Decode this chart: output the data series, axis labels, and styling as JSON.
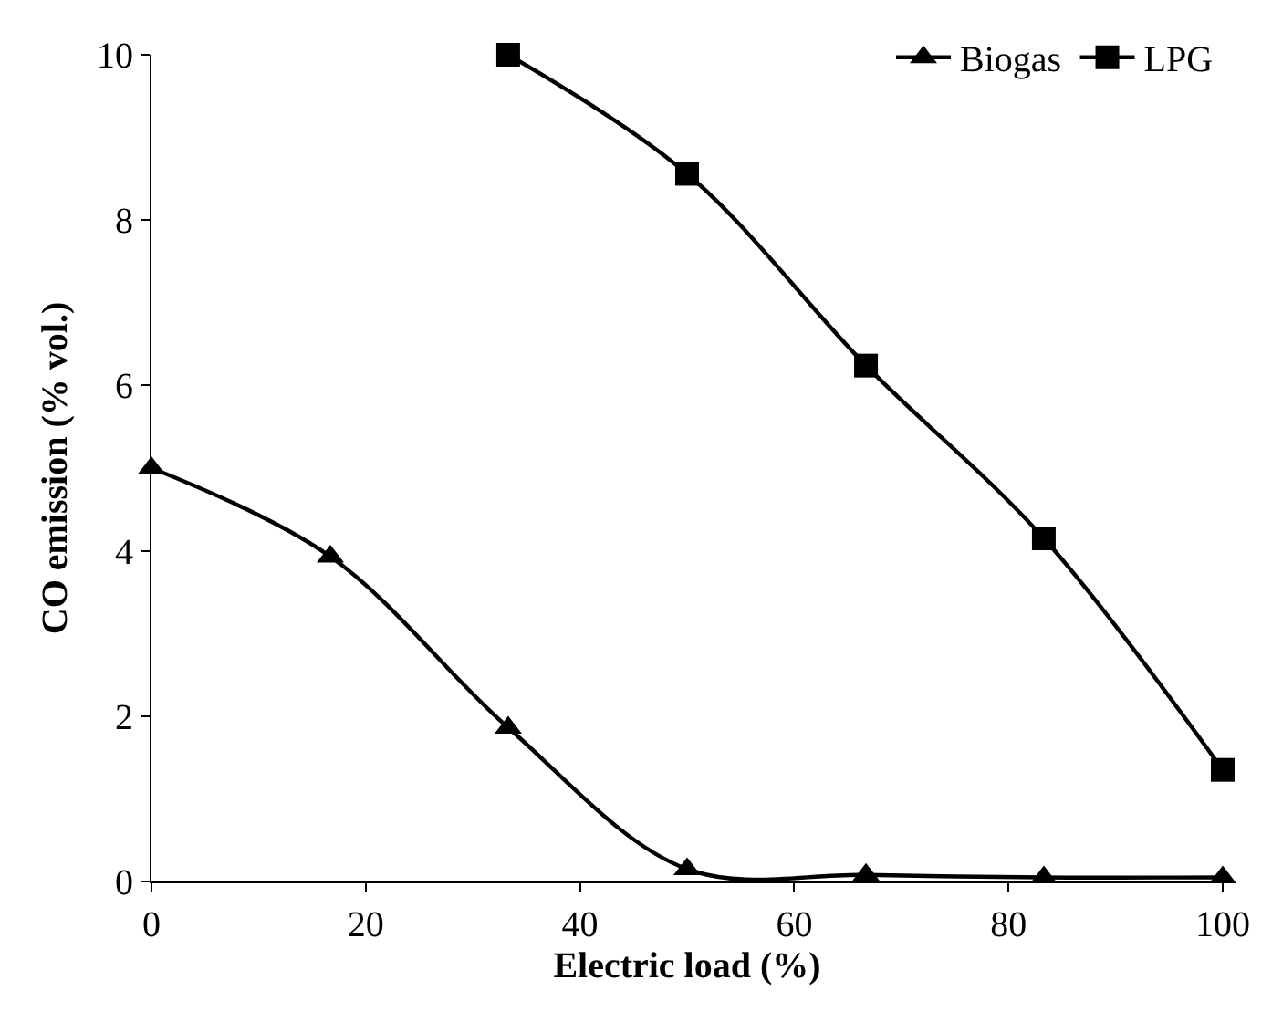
{
  "chart_data": {
    "type": "line",
    "xlabel": "Electric load (%)",
    "ylabel": "CO emission (% vol.)",
    "xlim": [
      0,
      100
    ],
    "xticks": [
      0,
      20,
      40,
      60,
      80,
      100
    ],
    "ylim": [
      0,
      10
    ],
    "yticks": [
      0,
      2,
      4,
      6,
      8,
      10
    ],
    "legend": "top right",
    "line_style": "solid",
    "series": [
      {
        "name": "Biogas",
        "color": "#000000",
        "marker": "triangle",
        "x": [
          0,
          16.7,
          33.3,
          50,
          66.7,
          83.3,
          100
        ],
        "values": [
          5.0,
          3.93,
          1.86,
          0.15,
          0.08,
          0.05,
          0.05
        ]
      },
      {
        "name": "LPG",
        "color": "#000000",
        "marker": "square",
        "x": [
          33.3,
          50,
          66.7,
          83.3,
          100
        ],
        "values": [
          10.0,
          8.56,
          6.24,
          4.15,
          1.35
        ]
      }
    ]
  }
}
